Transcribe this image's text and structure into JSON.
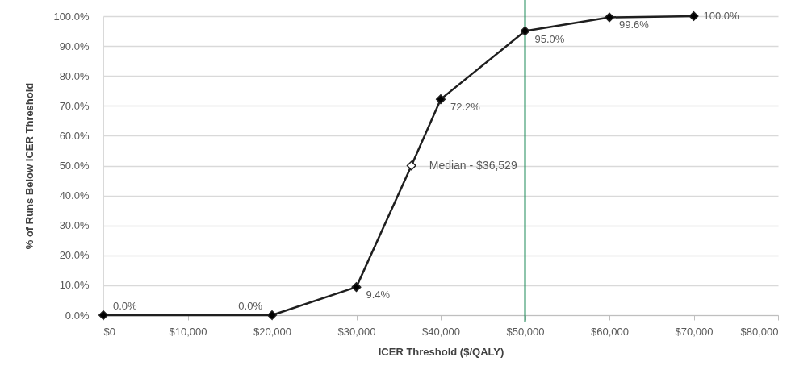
{
  "chart_data": {
    "type": "line",
    "xlabel": "ICER Threshold ($/QALY)",
    "ylabel": "% of Runs Below ICER Threshold",
    "x": [
      0,
      20000,
      30000,
      36529,
      40000,
      50000,
      60000,
      70000
    ],
    "series": [
      {
        "type": "line",
        "color": "#1f1f1f",
        "colors": [
          "#000000",
          "#000000",
          "#000000",
          "#ffffff",
          "#000000",
          "#000000",
          "#000000",
          "#000000"
        ],
        "values": [
          0,
          0,
          9.4,
          50,
          72.2,
          95,
          99.6,
          100
        ],
        "value_labels": [
          "0.0%",
          "0.0%",
          "9.4%",
          null,
          "72.2%",
          "95.0%",
          "99.6%",
          "100.0%"
        ]
      }
    ],
    "marker": "diamond",
    "line_style": "solid",
    "grid": "y",
    "xlim": [
      0,
      80000
    ],
    "xticks": [
      {
        "value": 0,
        "label": "$0"
      },
      {
        "value": 10000,
        "label": "$10,000"
      },
      {
        "value": 20000,
        "label": "$20,000"
      },
      {
        "value": 30000,
        "label": "$30,000"
      },
      {
        "value": 40000,
        "label": "$40,000"
      },
      {
        "value": 50000,
        "label": "$50,000"
      },
      {
        "value": 60000,
        "label": "$60,000"
      },
      {
        "value": 70000,
        "label": "$70,000"
      },
      {
        "value": 80000,
        "label": "$80,000"
      }
    ],
    "ylim": [
      0,
      100
    ],
    "yticks": [
      {
        "value": 0,
        "label": "0.0%"
      },
      {
        "value": 10,
        "label": "10.0%"
      },
      {
        "value": 20,
        "label": "20.0%"
      },
      {
        "value": 30,
        "label": "30.0%"
      },
      {
        "value": 40,
        "label": "40.0%"
      },
      {
        "value": 50,
        "label": "50.0%"
      },
      {
        "value": 60,
        "label": "60.0%"
      },
      {
        "value": 70,
        "label": "70.0%"
      },
      {
        "value": 80,
        "label": "80.0%"
      },
      {
        "value": 90,
        "label": "90.0%"
      },
      {
        "value": 100,
        "label": "100.0%"
      }
    ],
    "ref_lines": [
      {
        "axis": "x",
        "value": 50000,
        "color": "#1e8c5a"
      }
    ],
    "annotations": [
      {
        "text": "Median - $36,529",
        "x": 36529,
        "y": 50
      }
    ]
  }
}
